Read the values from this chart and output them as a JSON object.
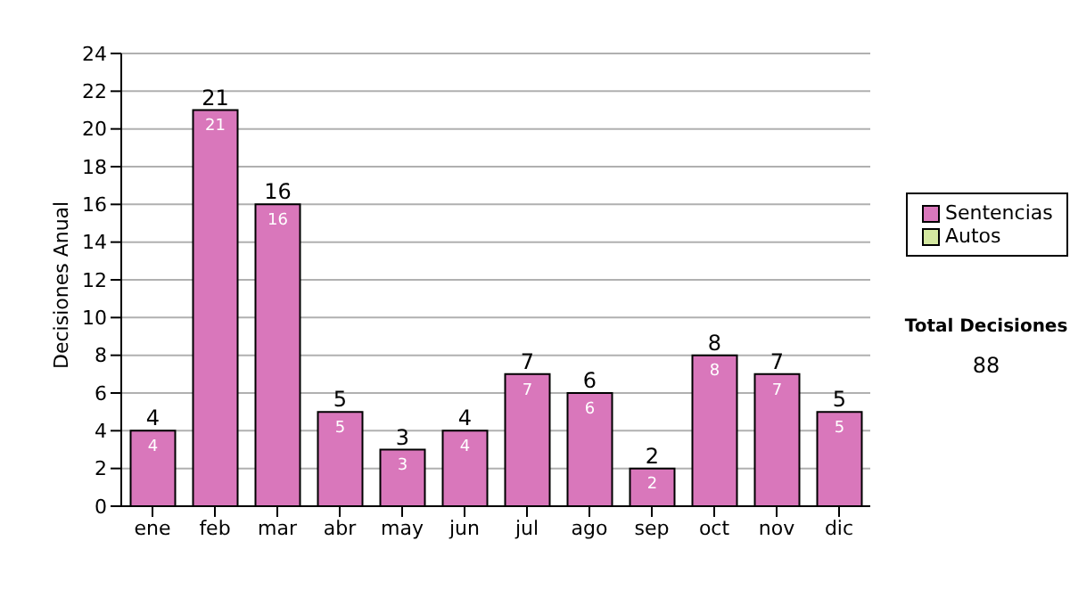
{
  "chart_data": {
    "type": "bar",
    "ylabel": "Decisiones Anual",
    "categories": [
      "ene",
      "feb",
      "mar",
      "abr",
      "may",
      "jun",
      "jul",
      "ago",
      "sep",
      "oct",
      "nov",
      "dic"
    ],
    "series": [
      {
        "name": "Sentencias",
        "color": "#d977bb",
        "values": [
          4,
          21,
          16,
          5,
          3,
          4,
          7,
          6,
          2,
          8,
          7,
          5
        ]
      },
      {
        "name": "Autos",
        "color": "#d4e8a0",
        "values": [
          null,
          null,
          null,
          null,
          null,
          null,
          null,
          null,
          null,
          null,
          null,
          null
        ]
      }
    ],
    "stacked": true,
    "data_labels": true,
    "totals": [
      "4",
      "21",
      "16",
      "5",
      "3",
      "4",
      "7",
      "6",
      "2",
      "8",
      "7",
      "5"
    ],
    "ylim": [
      0,
      24
    ],
    "yticks": [
      0,
      2,
      4,
      6,
      8,
      10,
      12,
      14,
      16,
      18,
      20,
      22,
      24
    ],
    "grid": "y",
    "legend": "right",
    "annotations": [
      "Total Decisiones",
      "88"
    ]
  }
}
